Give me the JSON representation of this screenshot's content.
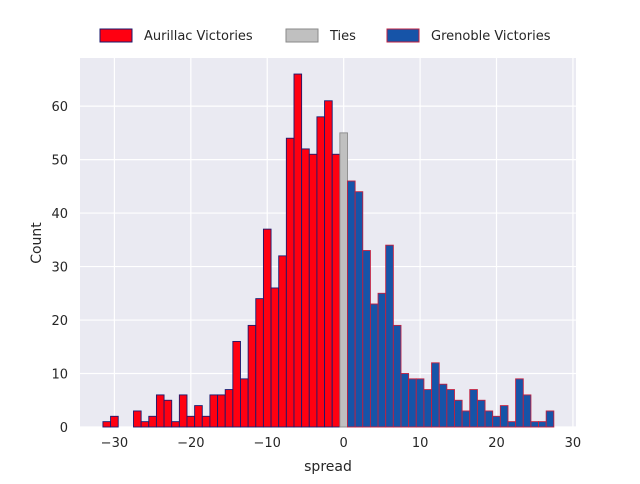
{
  "chart_data": {
    "type": "bar",
    "title": "",
    "xlabel": "spread",
    "ylabel": "Count",
    "xlim": [
      -34.5,
      30.4
    ],
    "ylim": [
      0,
      69
    ],
    "xticks": [
      -30,
      -20,
      -10,
      0,
      10,
      20,
      30
    ],
    "xtick_labels": [
      "−30",
      "−20",
      "−10",
      "0",
      "10",
      "20",
      "30"
    ],
    "yticks": [
      0,
      10,
      20,
      30,
      40,
      50,
      60
    ],
    "ytick_labels": [
      "0",
      "10",
      "20",
      "30",
      "40",
      "50",
      "60"
    ],
    "grid": true,
    "background": "#eaeaf2",
    "legend_position": "top-center, above plot",
    "series": [
      {
        "name": "Aurillac Victories",
        "color": "#ff0011",
        "edge_color": "#1a1a6e",
        "x": [
          -31,
          -30,
          -29,
          -28,
          -27,
          -26,
          -25,
          -24,
          -23,
          -22,
          -21,
          -20,
          -19,
          -18,
          -17,
          -16,
          -15,
          -14,
          -13,
          -12,
          -11,
          -10,
          -9,
          -8,
          -7,
          -6,
          -5,
          -4,
          -3,
          -2,
          -1
        ],
        "values": [
          1,
          2,
          0,
          0,
          3,
          1,
          2,
          6,
          5,
          1,
          6,
          2,
          4,
          2,
          6,
          6,
          7,
          16,
          9,
          19,
          24,
          37,
          26,
          32,
          54,
          66,
          52,
          51,
          58,
          61,
          51
        ]
      },
      {
        "name": "Ties",
        "color": "#c0c0c0",
        "edge_color": "#8a8a8a",
        "x": [
          0
        ],
        "values": [
          55
        ]
      },
      {
        "name": "Grenoble Victories",
        "color": "#1654a8",
        "edge_color": "#c02040",
        "x": [
          1,
          2,
          3,
          4,
          5,
          6,
          7,
          8,
          9,
          10,
          11,
          12,
          13,
          14,
          15,
          16,
          17,
          18,
          19,
          20,
          21,
          22,
          23,
          24,
          25,
          26,
          27
        ],
        "values": [
          46,
          44,
          33,
          23,
          25,
          34,
          19,
          10,
          9,
          9,
          7,
          12,
          8,
          7,
          5,
          3,
          7,
          5,
          3,
          2,
          4,
          1,
          9,
          6,
          1,
          1,
          3
        ]
      }
    ]
  }
}
